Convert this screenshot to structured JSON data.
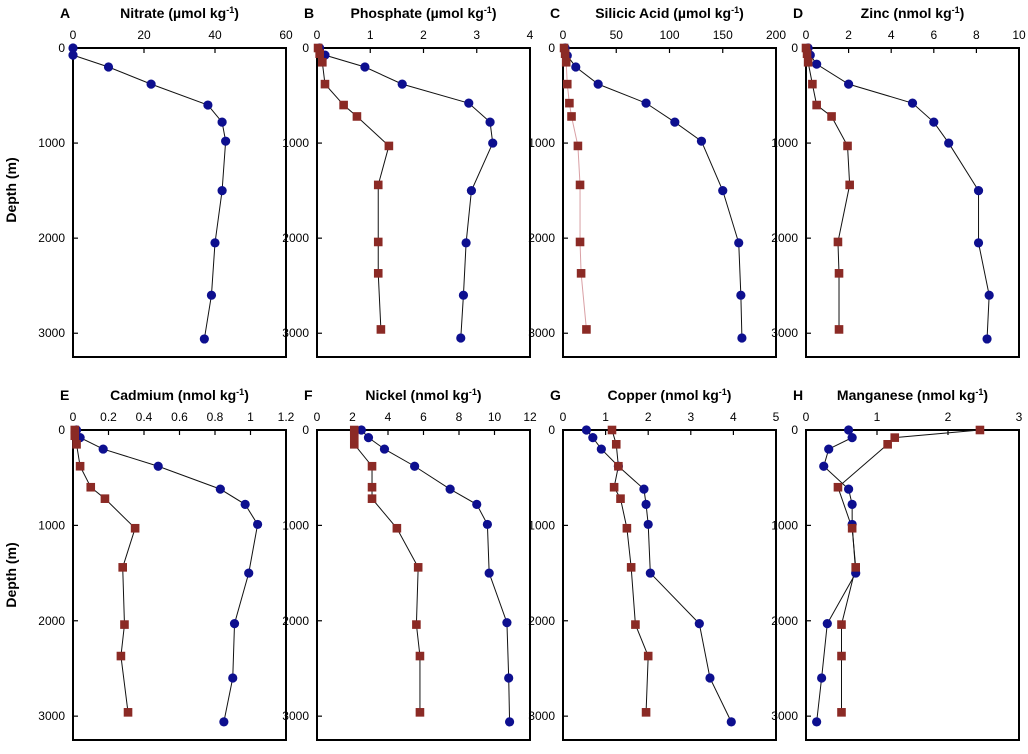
{
  "colors": {
    "blue_series": "#0d0f8f",
    "red_series": "#8b2a25",
    "line": "#111111",
    "silicic_red_line": "#d9a0a5"
  },
  "y_axis_label": "Depth (m)",
  "chart_data": [
    {
      "letter": "A",
      "title": "Nitrate",
      "unit": "(µmol kg",
      "sup": "-1",
      "unit_close": ")",
      "type": "scatter",
      "xlim": [
        0,
        60
      ],
      "x_ticks": [
        0,
        20,
        40,
        60
      ],
      "ylim": [
        0,
        3250
      ],
      "y_ticks": [
        0,
        1000,
        2000,
        3000
      ],
      "series": [
        {
          "name": "blue",
          "color": "#0d0f8f",
          "marker": "circle",
          "points": [
            [
              0,
              0
            ],
            [
              0,
              75
            ],
            [
              10,
              200
            ],
            [
              22,
              380
            ],
            [
              38,
              600
            ],
            [
              42,
              780
            ],
            [
              43,
              980
            ],
            [
              42,
              1500
            ],
            [
              40,
              2050
            ],
            [
              39,
              2600
            ],
            [
              37,
              3060
            ]
          ]
        }
      ]
    },
    {
      "letter": "B",
      "title": "Phosphate",
      "unit": "(µmol kg",
      "sup": "-1",
      "unit_close": ")",
      "type": "scatter",
      "xlim": [
        0,
        4
      ],
      "x_ticks": [
        0,
        1,
        2,
        3,
        4
      ],
      "ylim": [
        0,
        3250
      ],
      "y_ticks": [
        0,
        1000,
        2000,
        3000
      ],
      "series": [
        {
          "name": "blue",
          "color": "#0d0f8f",
          "marker": "circle",
          "points": [
            [
              0.05,
              0
            ],
            [
              0.15,
              75
            ],
            [
              0.9,
              200
            ],
            [
              1.6,
              380
            ],
            [
              2.85,
              580
            ],
            [
              3.25,
              780
            ],
            [
              3.3,
              1000
            ],
            [
              2.9,
              1500
            ],
            [
              2.8,
              2050
            ],
            [
              2.75,
              2600
            ],
            [
              2.7,
              3050
            ]
          ]
        },
        {
          "name": "red",
          "color": "#8b2a25",
          "marker": "square",
          "points": [
            [
              0.02,
              0
            ],
            [
              0.05,
              60
            ],
            [
              0.1,
              150
            ],
            [
              0.15,
              380
            ],
            [
              0.5,
              600
            ],
            [
              0.75,
              720
            ],
            [
              1.35,
              1030
            ],
            [
              1.15,
              1440
            ],
            [
              1.15,
              2040
            ],
            [
              1.15,
              2370
            ],
            [
              1.2,
              2960
            ]
          ]
        }
      ]
    },
    {
      "letter": "C",
      "title": "Silicic Acid",
      "unit": "(µmol kg",
      "sup": "-1",
      "unit_close": ")",
      "type": "scatter",
      "xlim": [
        0,
        200
      ],
      "x_ticks": [
        0,
        50,
        100,
        150,
        200
      ],
      "ylim": [
        0,
        3250
      ],
      "y_ticks": [
        0,
        1000,
        2000,
        3000
      ],
      "series": [
        {
          "name": "blue",
          "color": "#0d0f8f",
          "marker": "circle",
          "points": [
            [
              2,
              0
            ],
            [
              4,
              80
            ],
            [
              12,
              200
            ],
            [
              33,
              380
            ],
            [
              78,
              580
            ],
            [
              105,
              780
            ],
            [
              130,
              980
            ],
            [
              150,
              1500
            ],
            [
              165,
              2050
            ],
            [
              167,
              2600
            ],
            [
              168,
              3050
            ]
          ]
        },
        {
          "name": "red",
          "color": "#8b2a25",
          "marker": "square",
          "points": [
            [
              1,
              0
            ],
            [
              2,
              60
            ],
            [
              3,
              150
            ],
            [
              4,
              380
            ],
            [
              6,
              580
            ],
            [
              8,
              720
            ],
            [
              14,
              1030
            ],
            [
              16,
              1440
            ],
            [
              16,
              2040
            ],
            [
              17,
              2370
            ],
            [
              22,
              2960
            ]
          ]
        }
      ]
    },
    {
      "letter": "D",
      "title": "Zinc",
      "unit": "(nmol kg",
      "sup": "-1",
      "unit_close": ")",
      "type": "scatter",
      "xlim": [
        0,
        10
      ],
      "x_ticks": [
        0,
        2,
        4,
        6,
        8,
        10
      ],
      "ylim": [
        0,
        3250
      ],
      "y_ticks": [
        0,
        1000,
        2000,
        3000
      ],
      "series": [
        {
          "name": "blue",
          "color": "#0d0f8f",
          "marker": "circle",
          "points": [
            [
              0.1,
              0
            ],
            [
              0.2,
              75
            ],
            [
              0.5,
              170
            ],
            [
              2.0,
              380
            ],
            [
              5.0,
              580
            ],
            [
              6.0,
              780
            ],
            [
              6.7,
              1000
            ],
            [
              8.1,
              1500
            ],
            [
              8.1,
              2050
            ],
            [
              8.6,
              2600
            ],
            [
              8.5,
              3060
            ]
          ]
        },
        {
          "name": "red",
          "color": "#8b2a25",
          "marker": "square",
          "points": [
            [
              0,
              0
            ],
            [
              0.05,
              60
            ],
            [
              0.1,
              150
            ],
            [
              0.3,
              380
            ],
            [
              0.5,
              600
            ],
            [
              1.2,
              720
            ],
            [
              1.95,
              1030
            ],
            [
              2.05,
              1440
            ],
            [
              1.5,
              2040
            ],
            [
              1.55,
              2370
            ],
            [
              1.55,
              2960
            ]
          ]
        }
      ]
    },
    {
      "letter": "E",
      "title": "Cadmium",
      "unit": "(nmol kg",
      "sup": "-1",
      "unit_close": ")",
      "type": "scatter",
      "xlim": [
        0,
        1.2
      ],
      "x_ticks": [
        0,
        0.2,
        0.4,
        0.6,
        0.8,
        1,
        1.2
      ],
      "x_tick_labels": [
        "0",
        "0.2",
        "0.4",
        "0.6",
        "0.8",
        "1",
        "1.2"
      ],
      "ylim": [
        0,
        3250
      ],
      "y_ticks": [
        0,
        1000,
        2000,
        3000
      ],
      "series": [
        {
          "name": "blue",
          "color": "#0d0f8f",
          "marker": "circle",
          "points": [
            [
              0.02,
              0
            ],
            [
              0.04,
              80
            ],
            [
              0.17,
              200
            ],
            [
              0.48,
              380
            ],
            [
              0.83,
              620
            ],
            [
              0.97,
              780
            ],
            [
              1.04,
              990
            ],
            [
              0.99,
              1500
            ],
            [
              0.91,
              2030
            ],
            [
              0.9,
              2600
            ],
            [
              0.85,
              3060
            ]
          ]
        },
        {
          "name": "red",
          "color": "#8b2a25",
          "marker": "square",
          "points": [
            [
              0.01,
              0
            ],
            [
              0.01,
              60
            ],
            [
              0.02,
              150
            ],
            [
              0.04,
              380
            ],
            [
              0.1,
              600
            ],
            [
              0.18,
              720
            ],
            [
              0.35,
              1030
            ],
            [
              0.28,
              1440
            ],
            [
              0.29,
              2040
            ],
            [
              0.27,
              2370
            ],
            [
              0.31,
              2960
            ]
          ]
        }
      ]
    },
    {
      "letter": "F",
      "title": "Nickel",
      "unit": "(nmol kg",
      "sup": "-1",
      "unit_close": ")",
      "type": "scatter",
      "xlim": [
        0,
        12
      ],
      "x_ticks": [
        0,
        2,
        4,
        6,
        8,
        10,
        12
      ],
      "ylim": [
        0,
        3250
      ],
      "y_ticks": [
        0,
        1000,
        2000,
        3000
      ],
      "series": [
        {
          "name": "blue",
          "color": "#0d0f8f",
          "marker": "circle",
          "points": [
            [
              2.5,
              0
            ],
            [
              2.9,
              80
            ],
            [
              3.8,
              200
            ],
            [
              5.5,
              380
            ],
            [
              7.5,
              620
            ],
            [
              9.0,
              780
            ],
            [
              9.6,
              990
            ],
            [
              9.7,
              1500
            ],
            [
              10.7,
              2020
            ],
            [
              10.8,
              2600
            ],
            [
              10.85,
              3060
            ]
          ]
        },
        {
          "name": "red",
          "color": "#8b2a25",
          "marker": "square",
          "points": [
            [
              2.1,
              0
            ],
            [
              2.1,
              60
            ],
            [
              2.1,
              150
            ],
            [
              3.1,
              380
            ],
            [
              3.1,
              600
            ],
            [
              3.1,
              720
            ],
            [
              4.5,
              1030
            ],
            [
              5.7,
              1440
            ],
            [
              5.6,
              2040
            ],
            [
              5.8,
              2370
            ],
            [
              5.8,
              2960
            ]
          ]
        }
      ]
    },
    {
      "letter": "G",
      "title": "Copper",
      "unit": "(nmol kg",
      "sup": "-1",
      "unit_close": ")",
      "type": "scatter",
      "xlim": [
        0,
        5
      ],
      "x_ticks": [
        0,
        1,
        2,
        3,
        4,
        5
      ],
      "ylim": [
        0,
        3250
      ],
      "y_ticks": [
        0,
        1000,
        2000,
        3000
      ],
      "series": [
        {
          "name": "blue",
          "color": "#0d0f8f",
          "marker": "circle",
          "points": [
            [
              0.55,
              0
            ],
            [
              0.7,
              80
            ],
            [
              0.9,
              200
            ],
            [
              1.3,
              380
            ],
            [
              1.9,
              620
            ],
            [
              1.95,
              780
            ],
            [
              2.0,
              990
            ],
            [
              2.05,
              1500
            ],
            [
              3.2,
              2030
            ],
            [
              3.45,
              2600
            ],
            [
              3.95,
              3060
            ]
          ]
        },
        {
          "name": "red",
          "color": "#8b2a25",
          "marker": "square",
          "points": [
            [
              1.15,
              0
            ],
            [
              1.25,
              150
            ],
            [
              1.3,
              380
            ],
            [
              1.2,
              600
            ],
            [
              1.35,
              720
            ],
            [
              1.5,
              1030
            ],
            [
              1.6,
              1440
            ],
            [
              1.7,
              2040
            ],
            [
              2.0,
              2370
            ],
            [
              1.95,
              2960
            ]
          ]
        }
      ]
    },
    {
      "letter": "H",
      "title": "Manganese",
      "unit": "(nmol kg",
      "sup": "-1",
      "unit_close": ")",
      "type": "scatter",
      "xlim": [
        0,
        3
      ],
      "x_ticks": [
        0,
        1,
        2,
        3
      ],
      "ylim": [
        0,
        3250
      ],
      "y_ticks": [
        0,
        1000,
        2000,
        3000
      ],
      "series": [
        {
          "name": "blue",
          "color": "#0d0f8f",
          "marker": "circle",
          "points": [
            [
              0.6,
              0
            ],
            [
              0.65,
              80
            ],
            [
              0.32,
              200
            ],
            [
              0.25,
              380
            ],
            [
              0.6,
              620
            ],
            [
              0.65,
              780
            ],
            [
              0.65,
              990
            ],
            [
              0.7,
              1500
            ],
            [
              0.3,
              2030
            ],
            [
              0.22,
              2600
            ],
            [
              0.15,
              3060
            ]
          ]
        },
        {
          "name": "red",
          "color": "#8b2a25",
          "marker": "square",
          "points": [
            [
              2.45,
              0
            ],
            [
              1.25,
              80
            ],
            [
              1.15,
              150
            ],
            [
              0.45,
              600
            ],
            [
              0.65,
              1030
            ],
            [
              0.7,
              1440
            ],
            [
              0.5,
              2040
            ],
            [
              0.5,
              2370
            ],
            [
              0.5,
              2960
            ]
          ]
        }
      ]
    }
  ]
}
